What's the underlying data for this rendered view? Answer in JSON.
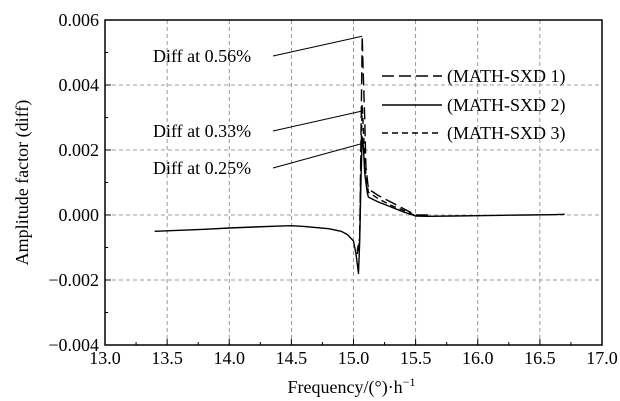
{
  "chart_data": {
    "type": "line",
    "title": "",
    "xlabel": "Frequency/(°)·h",
    "xlabel_sup": "−1",
    "ylabel": "Amplitude factor (diff)",
    "xlim": [
      13.0,
      17.0
    ],
    "ylim": [
      -0.004,
      0.006
    ],
    "x_ticks": [
      13.0,
      13.5,
      14.0,
      14.5,
      15.0,
      15.5,
      16.0,
      16.5,
      17.0
    ],
    "x_tick_labels": [
      "13.0",
      "13.5",
      "14.0",
      "14.5",
      "15.0",
      "15.5",
      "16.0",
      "16.5",
      "17.0"
    ],
    "y_ticks": [
      -0.004,
      -0.002,
      0.0,
      0.002,
      0.004,
      0.006
    ],
    "y_tick_labels": [
      "−0.004",
      "−0.002",
      "0.000",
      "0.002",
      "0.004",
      "0.006"
    ],
    "grid": true,
    "legend_position": "top-right",
    "colors": {
      "line": "#000000",
      "grid": "#808080"
    },
    "series": [
      {
        "name": "(MATH-SXD 1)",
        "dash": "long-dash",
        "x": [
          15.03,
          15.05,
          15.07,
          15.08,
          15.09,
          15.1,
          15.12,
          15.2,
          15.3,
          15.4,
          15.5,
          15.6
        ],
        "y": [
          -0.0012,
          -0.0008,
          0.0055,
          0.0042,
          0.003,
          0.0015,
          0.0008,
          0.0006,
          0.0004,
          0.0002,
          0.0,
          0.0
        ]
      },
      {
        "name": "(MATH-SXD 2)",
        "dash": "solid",
        "x": [
          13.4,
          13.6,
          13.8,
          14.0,
          14.2,
          14.4,
          14.5,
          14.6,
          14.8,
          14.9,
          14.95,
          15.0,
          15.02,
          15.04,
          15.05,
          15.06,
          15.07,
          15.08,
          15.09,
          15.1,
          15.11,
          15.12,
          15.2,
          15.3,
          15.4,
          15.5,
          15.6,
          15.8,
          16.0,
          16.2,
          16.4,
          16.6,
          16.7
        ],
        "y": [
          -0.0005,
          -0.00047,
          -0.00044,
          -0.0004,
          -0.00037,
          -0.00034,
          -0.00033,
          -0.00035,
          -0.00042,
          -0.0005,
          -0.0006,
          -0.0008,
          -0.0012,
          -0.0018,
          -0.0008,
          0.0011,
          0.0024,
          0.0021,
          0.0013,
          0.001,
          0.0007,
          0.00055,
          0.0004,
          0.00025,
          0.0001,
          -3e-05,
          -4e-05,
          -3e-05,
          -2e-05,
          -1e-05,
          0.0,
          1e-05,
          2e-05
        ]
      },
      {
        "name": "(MATH-SXD 3)",
        "dash": "short-dash",
        "x": [
          15.03,
          15.05,
          15.06,
          15.07,
          15.08,
          15.09,
          15.1,
          15.12,
          15.2,
          15.3,
          15.4,
          15.5,
          15.6
        ],
        "y": [
          -0.0011,
          -0.0007,
          0.0018,
          0.0034,
          0.0026,
          0.0018,
          0.0012,
          0.0007,
          0.0005,
          0.0003,
          0.00015,
          -2e-05,
          -3e-05
        ]
      }
    ],
    "annotations": [
      {
        "text": "Diff at 0.56%",
        "point": [
          15.07,
          0.0055
        ]
      },
      {
        "text": "Diff at 0.33%",
        "point": [
          15.07,
          0.0032
        ]
      },
      {
        "text": "Diff at 0.25%",
        "point": [
          15.07,
          0.0022
        ]
      }
    ]
  }
}
